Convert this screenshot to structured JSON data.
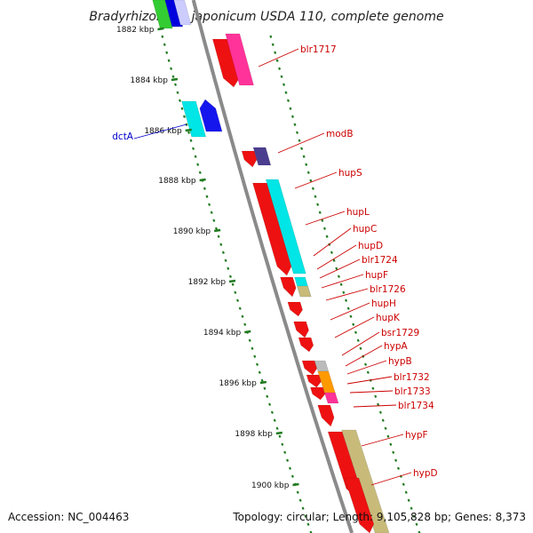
{
  "title": "Bradyrhizobium japonicum USDA 110, complete genome",
  "footer": {
    "accession": "Accession: NC_004463",
    "topology": "Topology: circular; Length: 9,105,828 bp; Genes: 8,373"
  },
  "colors": {
    "left_label": "#0000cc",
    "right_label": "#cc0000",
    "backbone": "#8a8a8a",
    "ticks": "#1f7a1f"
  },
  "kbp_marks": [
    "1882 kbp",
    "1884 kbp",
    "1886 kbp",
    "1888 kbp",
    "1890 kbp",
    "1892 kbp",
    "1894 kbp",
    "1896 kbp",
    "1898 kbp",
    "1900 kbp"
  ],
  "left_labels": [
    "dctA"
  ],
  "right_labels": [
    "blr1717",
    "modB",
    "hupS",
    "hupL",
    "hupC",
    "hupD",
    "blr1724",
    "hupF",
    "blr1726",
    "hupH",
    "hupK",
    "bsr1729",
    "hypA",
    "hypB",
    "blr1732",
    "blr1733",
    "blr1734",
    "hypF",
    "hypD"
  ]
}
